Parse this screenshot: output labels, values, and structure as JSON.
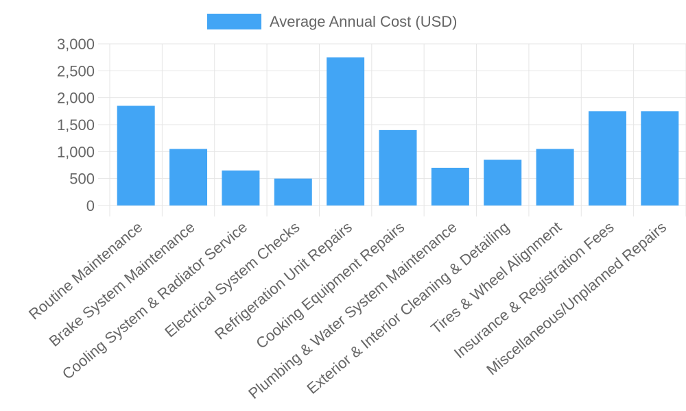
{
  "chart_data": {
    "type": "bar",
    "categories": [
      "Routine Maintenance",
      "Brake System Maintenance",
      "Cooling System & Radiator Service",
      "Electrical System Checks",
      "Refrigeration Unit Repairs",
      "Cooking Equipment Repairs",
      "Plumbing & Water System Maintenance",
      "Exterior & Interior Cleaning & Detailing",
      "Tires & Wheel Alignment",
      "Insurance & Registration Fees",
      "Miscellaneous/Unplanned Repairs"
    ],
    "series": [
      {
        "name": "Average Annual Cost (USD)",
        "values": [
          1850,
          1050,
          650,
          500,
          2750,
          1400,
          700,
          850,
          1050,
          1750,
          1750
        ]
      }
    ],
    "ylim": [
      0,
      3000
    ],
    "yticks": [
      "0",
      "500",
      "1,000",
      "1,500",
      "2,000",
      "2,500",
      "3,000"
    ],
    "ytick_values": [
      0,
      500,
      1000,
      1500,
      2000,
      2500,
      3000
    ],
    "grid": true,
    "legend_position": "top-center",
    "colors": {
      "bar": "#42a5f5",
      "grid": "#e5e5e5",
      "text": "#666666"
    }
  }
}
